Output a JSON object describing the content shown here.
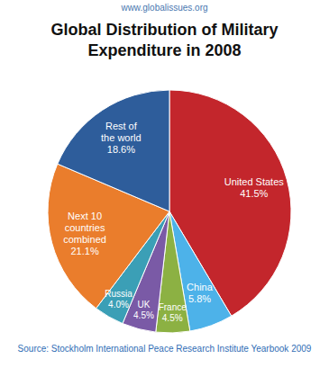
{
  "chart_data": {
    "type": "pie",
    "title": "Global Distribution of Military Expenditure in 2008",
    "annotations": [
      "www.globalissues.org",
      "Source: Stockholm International Peace Research Institute Yearbook 2009"
    ],
    "categories": [
      "United States",
      "China",
      "France",
      "UK",
      "Russia",
      "Next 10 countries combined",
      "Rest of the world"
    ],
    "values": [
      41.5,
      5.8,
      4.5,
      4.5,
      4.0,
      21.1,
      18.6
    ],
    "value_labels": [
      "41.5%",
      "5.8%",
      "4.5%",
      "4.5%",
      "4.0%",
      "21.1%",
      "18.6%"
    ],
    "colors": [
      "#c3262c",
      "#4db2e9",
      "#8cb143",
      "#7a5aa6",
      "#3b9fb6",
      "#ea7d2c",
      "#2e5d9b"
    ],
    "data_labels": true
  }
}
